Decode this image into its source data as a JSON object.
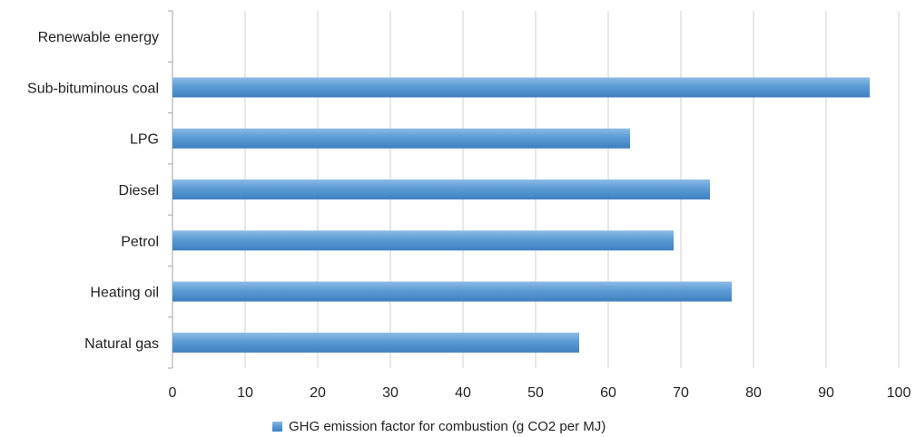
{
  "chart_data": {
    "type": "bar",
    "orientation": "horizontal",
    "categories": [
      "Renewable energy",
      "Sub-bituminous coal",
      "LPG",
      "Diesel",
      "Petrol",
      "Heating oil",
      "Natural gas"
    ],
    "series": [
      {
        "name": "GHG emission factor for combustion (g CO2 per MJ)",
        "values": [
          0,
          96,
          63,
          74,
          69,
          77,
          56
        ],
        "color": "#5b9bd5"
      }
    ],
    "xlim": [
      0,
      100
    ],
    "xticks": [
      0,
      10,
      20,
      30,
      40,
      50,
      60,
      70,
      80,
      90,
      100
    ],
    "grid": "vertical",
    "legend_position": "bottom"
  }
}
